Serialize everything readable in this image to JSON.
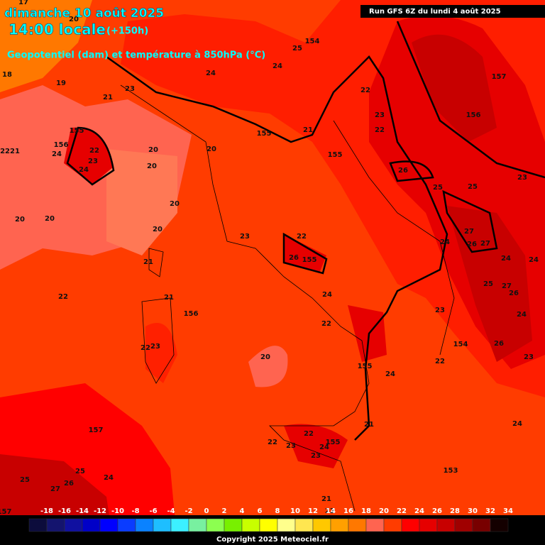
{
  "header": {
    "date": "dimanche 10 août 2025",
    "time": "14:00 locale",
    "lead": "(+150h)",
    "field": "Geopotentiel (dam) et température à 850hPa (°C)",
    "run": "Run GFS 6Z du lundi 4 août 2025"
  },
  "legend": {
    "values": [
      -18,
      -16,
      -14,
      -12,
      -10,
      -8,
      -6,
      -4,
      -2,
      0,
      2,
      4,
      6,
      8,
      10,
      12,
      14,
      16,
      18,
      20,
      22,
      24,
      26,
      28,
      30,
      32,
      34
    ],
    "colors": [
      "#0c0c3c",
      "#14146e",
      "#1010a0",
      "#0000c8",
      "#0000ff",
      "#0a3cff",
      "#0a82ff",
      "#1ebeff",
      "#3cf0ff",
      "#78f0a0",
      "#8cff50",
      "#78f000",
      "#c8ff00",
      "#ffff00",
      "#ffff8c",
      "#ffe650",
      "#ffc800",
      "#ffa000",
      "#ff7800",
      "#ff6450",
      "#ff3c00",
      "#ff0000",
      "#e60000",
      "#c80000",
      "#a00000",
      "#780000",
      "#140000"
    ]
  },
  "map_labels": [
    17,
    20,
    18,
    19,
    23,
    21,
    155,
    156,
    24,
    22,
    23,
    24,
    2221,
    20,
    20,
    20,
    20,
    20,
    20,
    20,
    21,
    23,
    22,
    26,
    155,
    155,
    21,
    155,
    154,
    25,
    24,
    24,
    157,
    156,
    22,
    23,
    22,
    26,
    25,
    25,
    23,
    27,
    26,
    27,
    24,
    24,
    24,
    25,
    27,
    26,
    24,
    26,
    23,
    23,
    154,
    22,
    156,
    21,
    22,
    23,
    22,
    20,
    22,
    24,
    155,
    24,
    21,
    157,
    22,
    23,
    22,
    24,
    155,
    23,
    153,
    24,
    25,
    25,
    26,
    24,
    27,
    157,
    21,
    22
  ],
  "footer": {
    "copyright": "Copyright 2025 Meteociel.fr"
  }
}
